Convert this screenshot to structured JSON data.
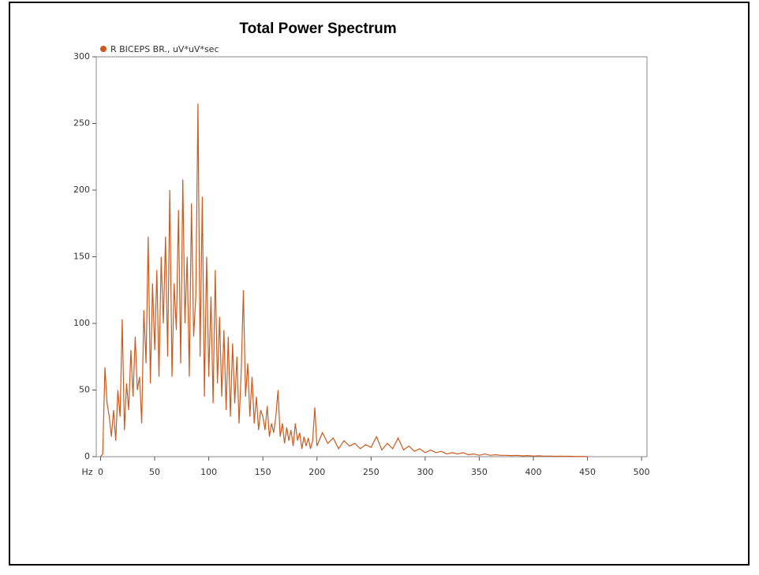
{
  "chart_data": {
    "type": "line",
    "title": "Total Power Spectrum",
    "x_unit": "Hz",
    "series": [
      {
        "name": "R BICEPS BR., uV*uV*sec",
        "color": "#cc5a1e",
        "x": [
          0,
          2,
          4,
          6,
          8,
          10,
          12,
          14,
          16,
          18,
          20,
          22,
          24,
          26,
          28,
          30,
          32,
          34,
          36,
          38,
          40,
          42,
          44,
          46,
          48,
          50,
          52,
          54,
          56,
          58,
          60,
          62,
          64,
          66,
          68,
          70,
          72,
          74,
          76,
          78,
          80,
          82,
          84,
          86,
          88,
          90,
          92,
          94,
          96,
          98,
          100,
          102,
          104,
          106,
          108,
          110,
          112,
          114,
          116,
          118,
          120,
          122,
          124,
          126,
          128,
          130,
          132,
          134,
          136,
          138,
          140,
          142,
          144,
          146,
          148,
          150,
          152,
          154,
          156,
          158,
          160,
          162,
          164,
          166,
          168,
          170,
          172,
          174,
          176,
          178,
          180,
          182,
          184,
          186,
          188,
          190,
          192,
          194,
          196,
          198,
          200,
          205,
          210,
          215,
          220,
          225,
          230,
          235,
          240,
          245,
          250,
          255,
          260,
          265,
          270,
          275,
          280,
          285,
          290,
          295,
          300,
          305,
          310,
          315,
          320,
          325,
          330,
          335,
          340,
          345,
          350,
          355,
          360,
          365,
          370,
          375,
          380,
          385,
          390,
          395,
          400,
          405,
          410,
          415,
          420,
          425,
          430,
          435,
          440,
          445,
          450
        ],
        "values": [
          0,
          2,
          67,
          40,
          30,
          15,
          35,
          12,
          50,
          30,
          103,
          20,
          55,
          35,
          80,
          45,
          90,
          50,
          60,
          25,
          110,
          70,
          165,
          55,
          130,
          80,
          140,
          60,
          150,
          100,
          165,
          75,
          200,
          60,
          130,
          95,
          185,
          70,
          208,
          100,
          150,
          60,
          190,
          90,
          120,
          265,
          75,
          195,
          45,
          150,
          60,
          120,
          40,
          140,
          55,
          105,
          45,
          95,
          35,
          90,
          30,
          85,
          40,
          75,
          25,
          65,
          125,
          45,
          70,
          30,
          60,
          25,
          45,
          20,
          35,
          30,
          20,
          38,
          15,
          25,
          18,
          30,
          50,
          15,
          25,
          10,
          22,
          12,
          20,
          8,
          25,
          12,
          18,
          6,
          15,
          8,
          14,
          6,
          12,
          37,
          8,
          18,
          10,
          14,
          6,
          12,
          8,
          10,
          6,
          9,
          7,
          15,
          5,
          10,
          6,
          14,
          5,
          8,
          4,
          6,
          3,
          5,
          3,
          4,
          2,
          3,
          2,
          3,
          1.5,
          2,
          1,
          2,
          1,
          1.5,
          1,
          1,
          0.8,
          1,
          0.6,
          0.8,
          0.5,
          0.7,
          0.4,
          0.5,
          0.3,
          0.4,
          0.3,
          0.3,
          0.2,
          0.2,
          0.1
        ]
      }
    ],
    "xlim": [
      -4,
      505
    ],
    "ylim": [
      0,
      300
    ],
    "xticks": [
      0,
      50,
      100,
      150,
      200,
      250,
      300,
      350,
      400,
      450,
      500
    ],
    "yticks": [
      0,
      50,
      100,
      150,
      200,
      250,
      300
    ]
  }
}
